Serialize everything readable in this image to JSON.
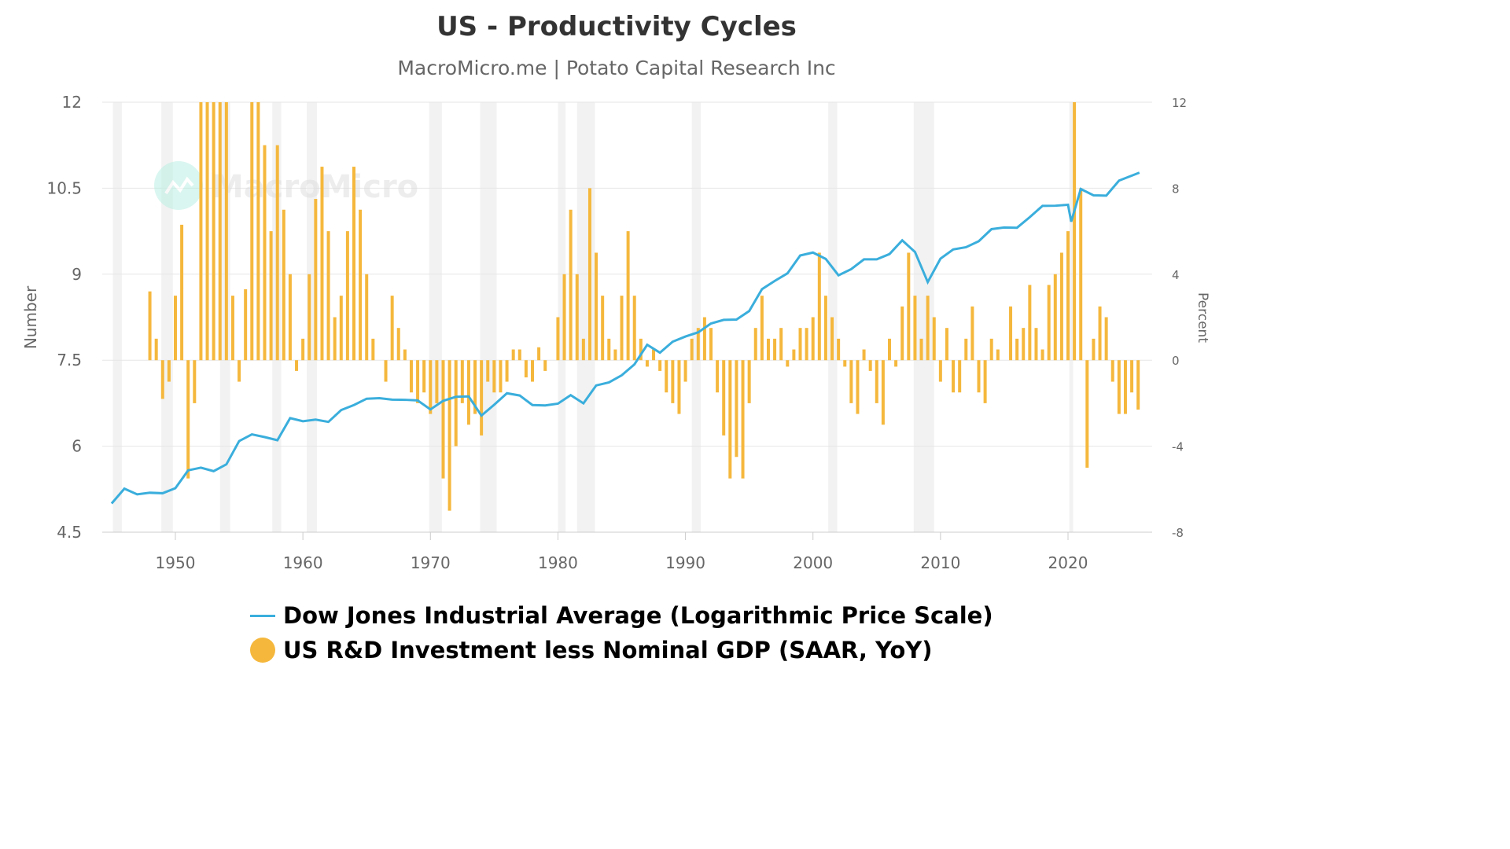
{
  "chart_data": {
    "type": "bar+line",
    "title": "US - Productivity Cycles",
    "subtitle": "MacroMicro.me | Potato Capital Research Inc",
    "watermark": "MacroMicro",
    "ylabel_left": "Number",
    "ylabel_right": "Percent",
    "ylim_left": [
      4.5,
      12
    ],
    "ylim_right": [
      -8,
      12
    ],
    "yticks_left": [
      "4.5",
      "6",
      "7.5",
      "9",
      "10.5",
      "12"
    ],
    "yticks_right": [
      "-8",
      "-4",
      "0",
      "4",
      "8",
      "12"
    ],
    "xlim": [
      1944.4,
      2026.7
    ],
    "xticks": [
      "1950",
      "1960",
      "1970",
      "1980",
      "1990",
      "2000",
      "2010",
      "2020"
    ],
    "colors": {
      "line": "#3aaedc",
      "bar": "#f5b83d",
      "recession": "#f2f2f2"
    },
    "recessions": [
      [
        1945.1,
        1945.8
      ],
      [
        1948.9,
        1949.8
      ],
      [
        1953.5,
        1954.3
      ],
      [
        1957.6,
        1958.3
      ],
      [
        1960.3,
        1961.1
      ],
      [
        1969.9,
        1970.9
      ],
      [
        1973.9,
        1975.2
      ],
      [
        1980.0,
        1980.6
      ],
      [
        1981.5,
        1982.9
      ],
      [
        1990.5,
        1991.2
      ],
      [
        2001.2,
        2001.9
      ],
      [
        2007.9,
        2009.5
      ],
      [
        2020.1,
        2020.4
      ]
    ],
    "series": [
      {
        "name": "Dow Jones Industrial Average (Logarithmic Price Scale)",
        "type": "line",
        "axis": "left",
        "x": [
          1945,
          1946,
          1947,
          1948,
          1949,
          1950,
          1951,
          1952,
          1953,
          1954,
          1955,
          1956,
          1957,
          1958,
          1959,
          1960,
          1961,
          1962,
          1963,
          1964,
          1965,
          1966,
          1967,
          1968,
          1969,
          1970,
          1971,
          1972,
          1973,
          1974,
          1975,
          1976,
          1977,
          1978,
          1979,
          1980,
          1981,
          1982,
          1983,
          1984,
          1985,
          1986,
          1987,
          1988,
          1989,
          1990,
          1991,
          1992,
          1993,
          1994,
          1995,
          1996,
          1997,
          1998,
          1999,
          2000,
          2001,
          2002,
          2003,
          2004,
          2005,
          2006,
          2007,
          2008,
          2009,
          2010,
          2011,
          2012,
          2013,
          2014,
          2015,
          2016,
          2017,
          2018,
          2019,
          2020,
          2020.25,
          2021,
          2022,
          2023,
          2024,
          2025.6
        ],
        "values": [
          5.0,
          5.3,
          5.15,
          5.15,
          5.2,
          5.3,
          5.55,
          5.6,
          5.6,
          5.7,
          6.05,
          6.2,
          6.2,
          6.1,
          6.45,
          6.45,
          6.5,
          6.4,
          6.6,
          6.75,
          6.85,
          6.8,
          6.8,
          6.85,
          6.8,
          6.6,
          6.8,
          6.9,
          6.85,
          6.5,
          6.75,
          6.95,
          6.85,
          6.7,
          6.75,
          6.75,
          6.85,
          6.75,
          7.1,
          7.1,
          7.2,
          7.45,
          7.8,
          7.6,
          7.8,
          7.95,
          8.0,
          8.1,
          8.2,
          8.25,
          8.35,
          8.7,
          8.9,
          9.05,
          9.3,
          9.35,
          9.3,
          9.0,
          9.05,
          9.25,
          9.3,
          9.35,
          9.55,
          9.4,
          8.9,
          9.25,
          9.4,
          9.5,
          9.6,
          9.75,
          9.8,
          9.85,
          10.0,
          10.15,
          10.2,
          10.25,
          9.9,
          10.45,
          10.4,
          10.4,
          10.6,
          10.75
        ]
      },
      {
        "name": "US R&D Investment less Nominal GDP (SAAR, YoY)",
        "type": "bar",
        "axis": "right",
        "start": 1948.0,
        "step": 0.5,
        "values": [
          3.2,
          1.0,
          -1.8,
          -1.0,
          3.0,
          6.3,
          -5.5,
          -2.0,
          12,
          14,
          14,
          12,
          12,
          3.0,
          -1.0,
          3.3,
          14,
          14,
          10,
          6,
          10,
          7,
          4,
          -0.5,
          1,
          4,
          7.5,
          9,
          6,
          2,
          3,
          6,
          9,
          7,
          4,
          1,
          0,
          -1,
          3,
          1.5,
          0.5,
          -1.5,
          -2,
          -1.5,
          -2.5,
          -2.0,
          -5.5,
          -7,
          -4,
          -2,
          -3,
          -2.5,
          -3.5,
          -1,
          -1.5,
          -1.5,
          -1,
          0.5,
          0.5,
          -0.8,
          -1,
          0.6,
          -0.5,
          0,
          2,
          4,
          7,
          4,
          1,
          8,
          5,
          3,
          1,
          0.5,
          3,
          6,
          3,
          1,
          -0.3,
          0.5,
          -0.5,
          -1.5,
          -2,
          -2.5,
          -1,
          1,
          1.5,
          2,
          1.5,
          -1.5,
          -3.5,
          -5.5,
          -4.5,
          -5.5,
          -2,
          1.5,
          3,
          1,
          1,
          1.5,
          -0.3,
          0.5,
          1.5,
          1.5,
          2,
          5,
          3,
          2,
          1,
          -0.3,
          -2,
          -2.5,
          0.5,
          -0.5,
          -2,
          -3,
          1,
          -0.3,
          2.5,
          5,
          3,
          1,
          3,
          2,
          -1,
          1.5,
          -1.5,
          -1.5,
          1,
          2.5,
          -1.5,
          -2,
          1,
          0.5,
          0,
          2.5,
          1,
          1.5,
          3.5,
          1.5,
          0.5,
          3.5,
          4,
          5,
          6,
          12,
          8,
          -5,
          1,
          2.5,
          2,
          -1,
          -2.5,
          -2.5,
          -1.5,
          -2.3
        ]
      }
    ]
  }
}
